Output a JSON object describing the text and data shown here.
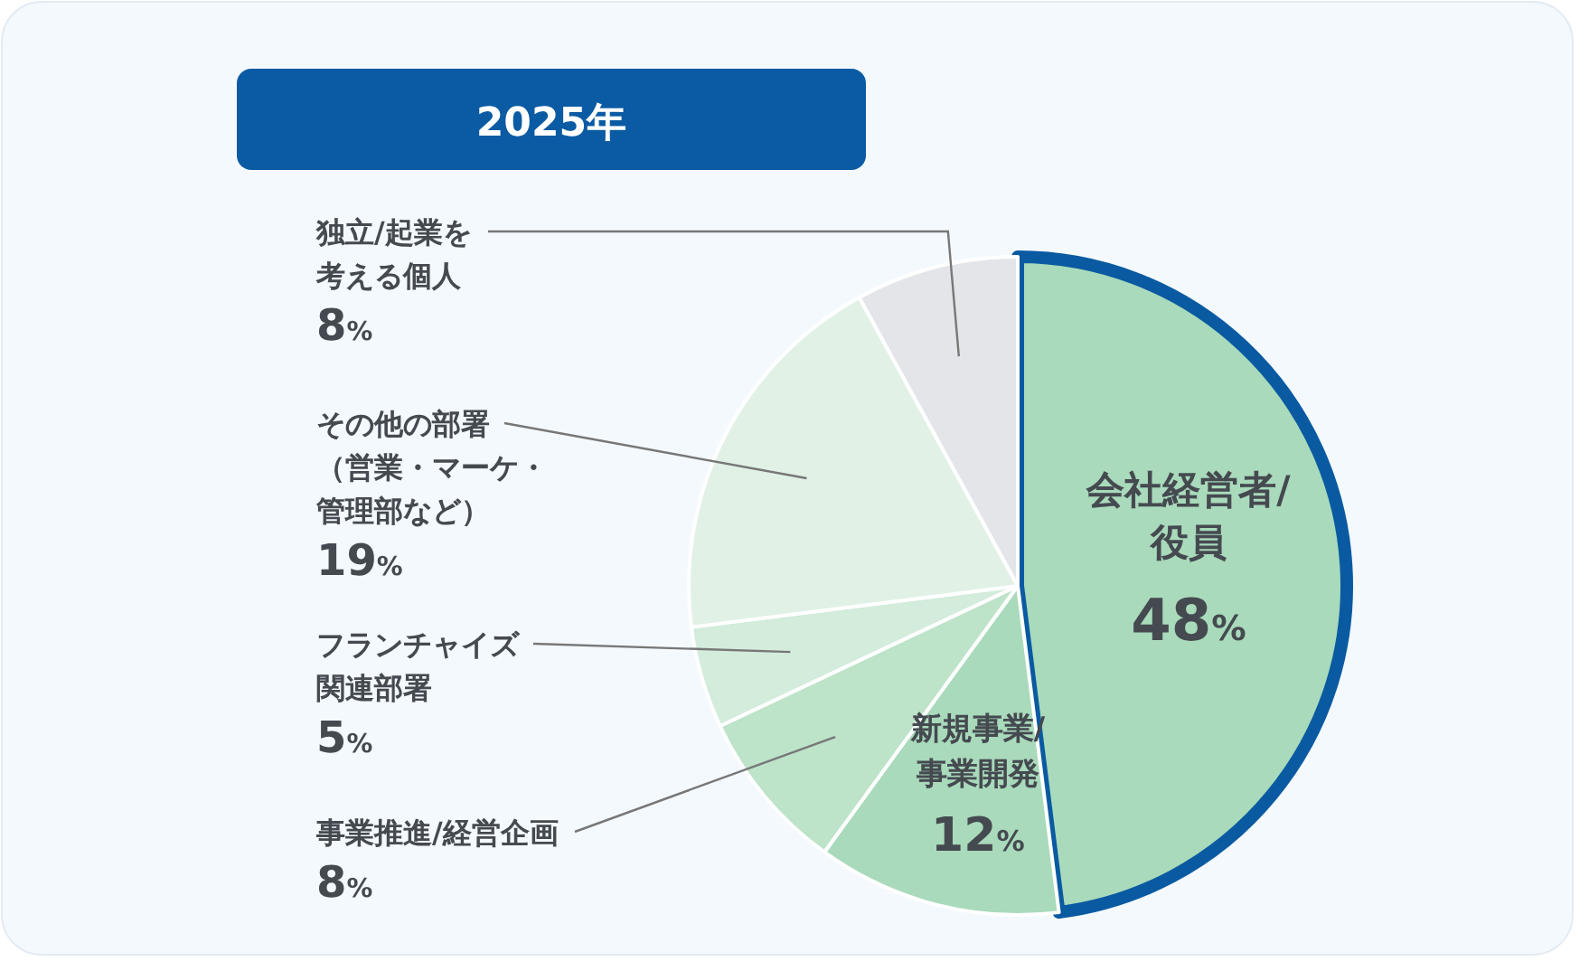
{
  "chart_data": {
    "type": "pie",
    "title": "2025年",
    "categories": [
      "会社経営者/役員",
      "新規事業/事業開発",
      "事業推進/経営企画",
      "フランチャイズ関連部署",
      "その他の部署（営業・マーケ・管理部など）",
      "独立/起業を考える個人"
    ],
    "values": [
      48,
      12,
      8,
      5,
      19,
      8
    ],
    "value_labels": [
      "48%",
      "12%",
      "8%",
      "5%",
      "19%",
      "8%"
    ],
    "colors": [
      "#a9dabb",
      "#a9dabb",
      "#bde3c9",
      "#d3ecdc",
      "#e1f1e6",
      "#e4e5e9"
    ]
  }
}
